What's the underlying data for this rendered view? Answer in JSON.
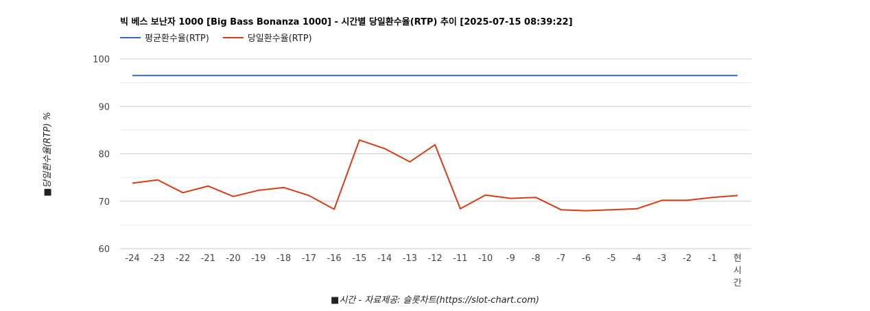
{
  "chart_data": {
    "type": "line",
    "title": "빅 베스 보난자 1000 [Big Bass Bonanza 1000] - 시간별 당일환수율(RTP) 추이 [2025-07-15 08:39:22]",
    "xlabel": "■시간 - 자료제공: 슬롯차트(https://slot-chart.com)",
    "ylabel": "■당일환수율(RTP) %",
    "categories": [
      "-24",
      "-23",
      "-22",
      "-21",
      "-20",
      "-19",
      "-18",
      "-17",
      "-16",
      "-15",
      "-14",
      "-13",
      "-12",
      "-11",
      "-10",
      "-9",
      "-8",
      "-7",
      "-6",
      "-5",
      "-4",
      "-3",
      "-2",
      "-1",
      "현\n시\n간"
    ],
    "ylim": [
      60,
      100
    ],
    "yticks": [
      60,
      70,
      80,
      90,
      100
    ],
    "grid": true,
    "legend_position": "top-left",
    "series": [
      {
        "name": "평균환수율(RTP)",
        "color": "#3366cc",
        "values": [
          96.5,
          96.5,
          96.5,
          96.5,
          96.5,
          96.5,
          96.5,
          96.5,
          96.5,
          96.5,
          96.5,
          96.5,
          96.5,
          96.5,
          96.5,
          96.5,
          96.5,
          96.5,
          96.5,
          96.5,
          96.5,
          96.5,
          96.5,
          96.5,
          96.5
        ]
      },
      {
        "name": "당일환수율(RTP)",
        "color": "#dc3912",
        "values": [
          73.8,
          74.5,
          71.8,
          73.2,
          71.0,
          72.3,
          72.9,
          71.2,
          68.3,
          82.9,
          81.1,
          78.3,
          81.9,
          68.4,
          71.3,
          70.6,
          70.8,
          68.2,
          68.0,
          68.2,
          68.4,
          70.2,
          70.2,
          70.8,
          71.2
        ]
      }
    ]
  }
}
